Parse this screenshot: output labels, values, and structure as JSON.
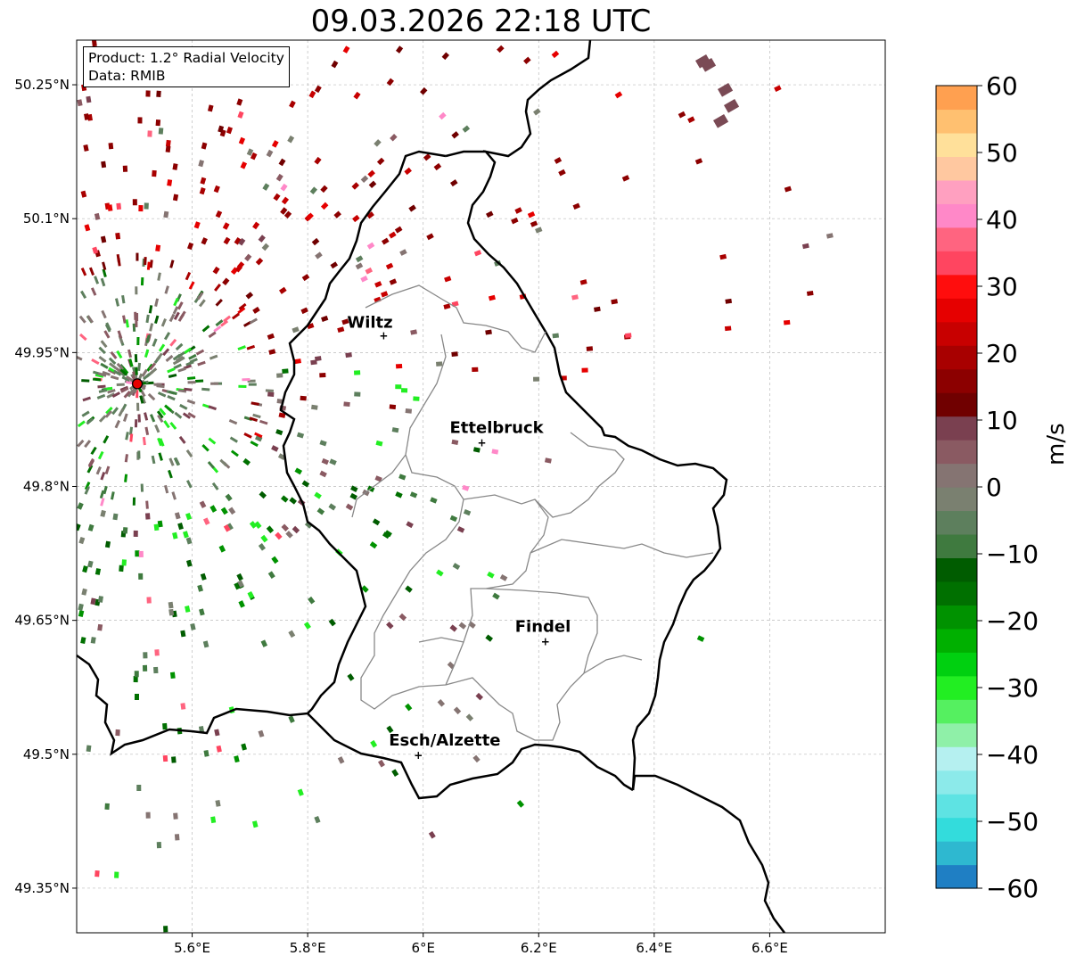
{
  "title": "09.03.2026 22:18 UTC",
  "info": {
    "product": "Product: 1.2° Radial Velocity",
    "data_source": "Data: RMIB"
  },
  "axes": {
    "lon_min": 5.4,
    "lon_max": 6.8,
    "lat_min": 49.3,
    "lat_max": 50.3,
    "lon_ticks": [
      5.6,
      5.8,
      6.0,
      6.2,
      6.4,
      6.6
    ],
    "lon_labels": [
      "5.6°E",
      "5.8°E",
      "6°E",
      "6.2°E",
      "6.4°E",
      "6.6°E"
    ],
    "lat_ticks": [
      49.35,
      49.5,
      49.65,
      49.8,
      49.95,
      50.1,
      50.25
    ],
    "lat_labels": [
      "49.35°N",
      "49.5°N",
      "49.65°N",
      "49.8°N",
      "49.95°N",
      "50.1°N",
      "50.25°N"
    ]
  },
  "radar_site": {
    "lon": 5.505,
    "lat": 49.915,
    "color": "#e60000"
  },
  "cities": [
    {
      "name": "Wiltz",
      "lon": 5.93,
      "lat": 49.97
    },
    {
      "name": "Ettelbruck",
      "lon": 6.1,
      "lat": 49.85
    },
    {
      "name": "Findel",
      "lon": 6.21,
      "lat": 49.627
    },
    {
      "name": "Esch/Alzette",
      "lon": 5.99,
      "lat": 49.5
    }
  ],
  "colorbar": {
    "label": "m/s",
    "min": -60,
    "max": 60,
    "ticks": [
      60,
      50,
      40,
      30,
      20,
      10,
      0,
      -10,
      -20,
      -30,
      -40,
      -50,
      -60
    ],
    "tick_labels": [
      "60",
      "50",
      "40",
      "30",
      "20",
      "10",
      "0",
      "−10",
      "−20",
      "−30",
      "−40",
      "−50",
      "−60"
    ],
    "colors": [
      "#1f7fc4",
      "#2eb8d0",
      "#33dcdc",
      "#5ee3e3",
      "#8ceaea",
      "#b5f0f0",
      "#8ff0a8",
      "#55f060",
      "#22ee22",
      "#00d010",
      "#00b000",
      "#009200",
      "#007000",
      "#005c00",
      "#3f7a3f",
      "#5d7f5d",
      "#7a8070",
      "#857472",
      "#8a5a62",
      "#7a4050",
      "#700000",
      "#8c0000",
      "#a80000",
      "#c80000",
      "#e60000",
      "#ff0d0d",
      "#ff4560",
      "#ff6480",
      "#ff88c8",
      "#ffa0c0",
      "#ffc8a0",
      "#ffe09a",
      "#ffc070",
      "#ffa050"
    ]
  }
}
